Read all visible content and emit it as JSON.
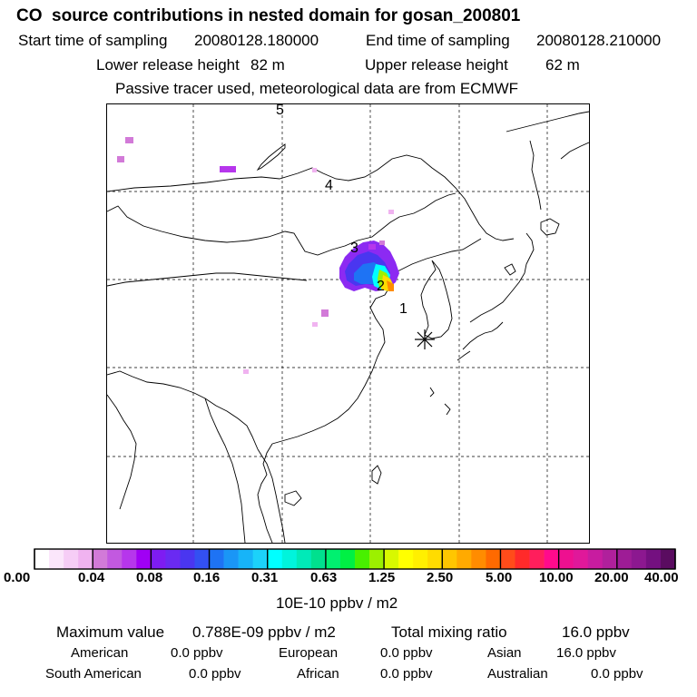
{
  "title": "CO  source contributions in nested domain for gosan_200801",
  "sampling": {
    "start_label": "Start time of sampling",
    "start_value": "20080128.180000",
    "end_label": "End time of sampling",
    "end_value": "20080128.210000"
  },
  "release": {
    "lower_label": "Lower release height",
    "lower_value": "82 m",
    "upper_label": "Upper release height",
    "upper_value": "62 m"
  },
  "tracer_note": "Passive tracer used, meteorological data are from ECMWF",
  "map": {
    "trajectory_labels": [
      "5",
      "4",
      "3",
      "2",
      "1"
    ],
    "receptor_symbol": "asterisk"
  },
  "colorbar": {
    "tick_labels": [
      "0.00",
      "0.04",
      "0.08",
      "0.16",
      "0.31",
      "0.63",
      "1.25",
      "2.50",
      "5.00",
      "10.00",
      "20.00",
      "40.00"
    ],
    "colors": [
      "#ffffff",
      "#fbe6fb",
      "#f6cdf6",
      "#f0b3f0",
      "#d27ad8",
      "#c259e0",
      "#b636ec",
      "#a000f4",
      "#7e1cf2",
      "#6a2af2",
      "#4a36f0",
      "#3350f2",
      "#1e73f4",
      "#1a96f6",
      "#17b4f8",
      "#1cd2fa",
      "#00ffff",
      "#00f4dc",
      "#00eab8",
      "#00e08e",
      "#00f070",
      "#00f044",
      "#48f000",
      "#9cf000",
      "#d8f800",
      "#ffff00",
      "#fff000",
      "#ffdc00",
      "#ffc600",
      "#ffaa00",
      "#ff8c00",
      "#ff6a00",
      "#ff4c1a",
      "#ff2a2a",
      "#ff1e5c",
      "#ff0a8c",
      "#ee1090",
      "#e0189a",
      "#c81ca0",
      "#b0209c",
      "#9e1c96",
      "#8c1890",
      "#741080",
      "#5a0c60"
    ],
    "unit": "10E-10 ppbv / m2"
  },
  "summary": {
    "max_label": "Maximum value",
    "max_value": "0.788E-09 ppbv / m2",
    "total_label": "Total mixing ratio",
    "total_value": "16.0 ppbv"
  },
  "regions": [
    {
      "name": "American",
      "value": "0.0 ppbv"
    },
    {
      "name": "European",
      "value": "0.0 ppbv"
    },
    {
      "name": "Asian",
      "value": "16.0 ppbv"
    },
    {
      "name": "South American",
      "value": "0.0 ppbv"
    },
    {
      "name": "African",
      "value": "0.0 ppbv"
    },
    {
      "name": "Australian",
      "value": "0.0 ppbv"
    }
  ]
}
